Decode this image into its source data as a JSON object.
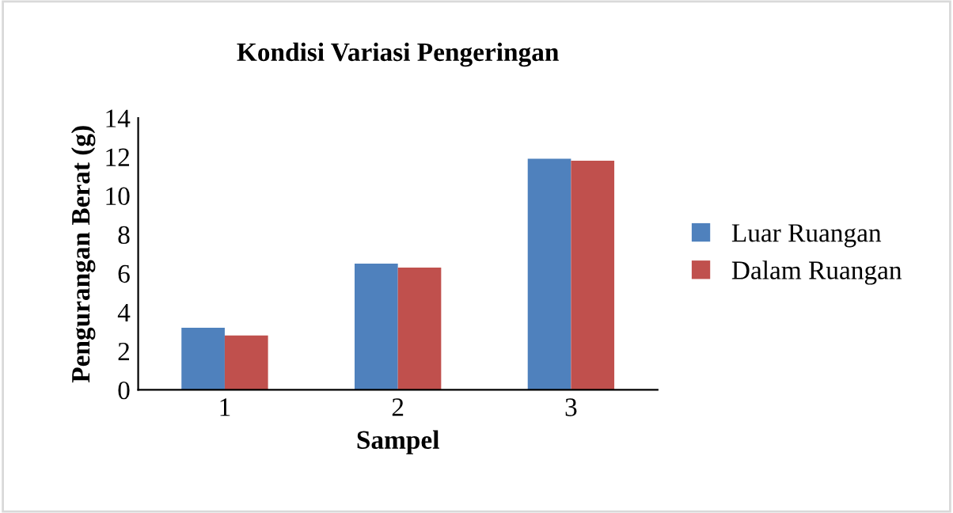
{
  "chart_data": {
    "type": "bar",
    "title": "Kondisi Variasi Pengeringan",
    "xlabel": "Sampel",
    "ylabel": "Pengurangan Berat (g)",
    "categories": [
      "1",
      "2",
      "3"
    ],
    "series": [
      {
        "name": "Luar Ruangan",
        "color": "#4f81bd",
        "values": [
          3.2,
          6.5,
          11.9
        ]
      },
      {
        "name": "Dalam Ruangan",
        "color": "#c0504d",
        "values": [
          2.8,
          6.3,
          11.8
        ]
      }
    ],
    "ylim": [
      0,
      14
    ],
    "yticks": [
      0,
      2,
      4,
      6,
      8,
      10,
      12,
      14
    ],
    "grid": false,
    "legend": "right"
  }
}
